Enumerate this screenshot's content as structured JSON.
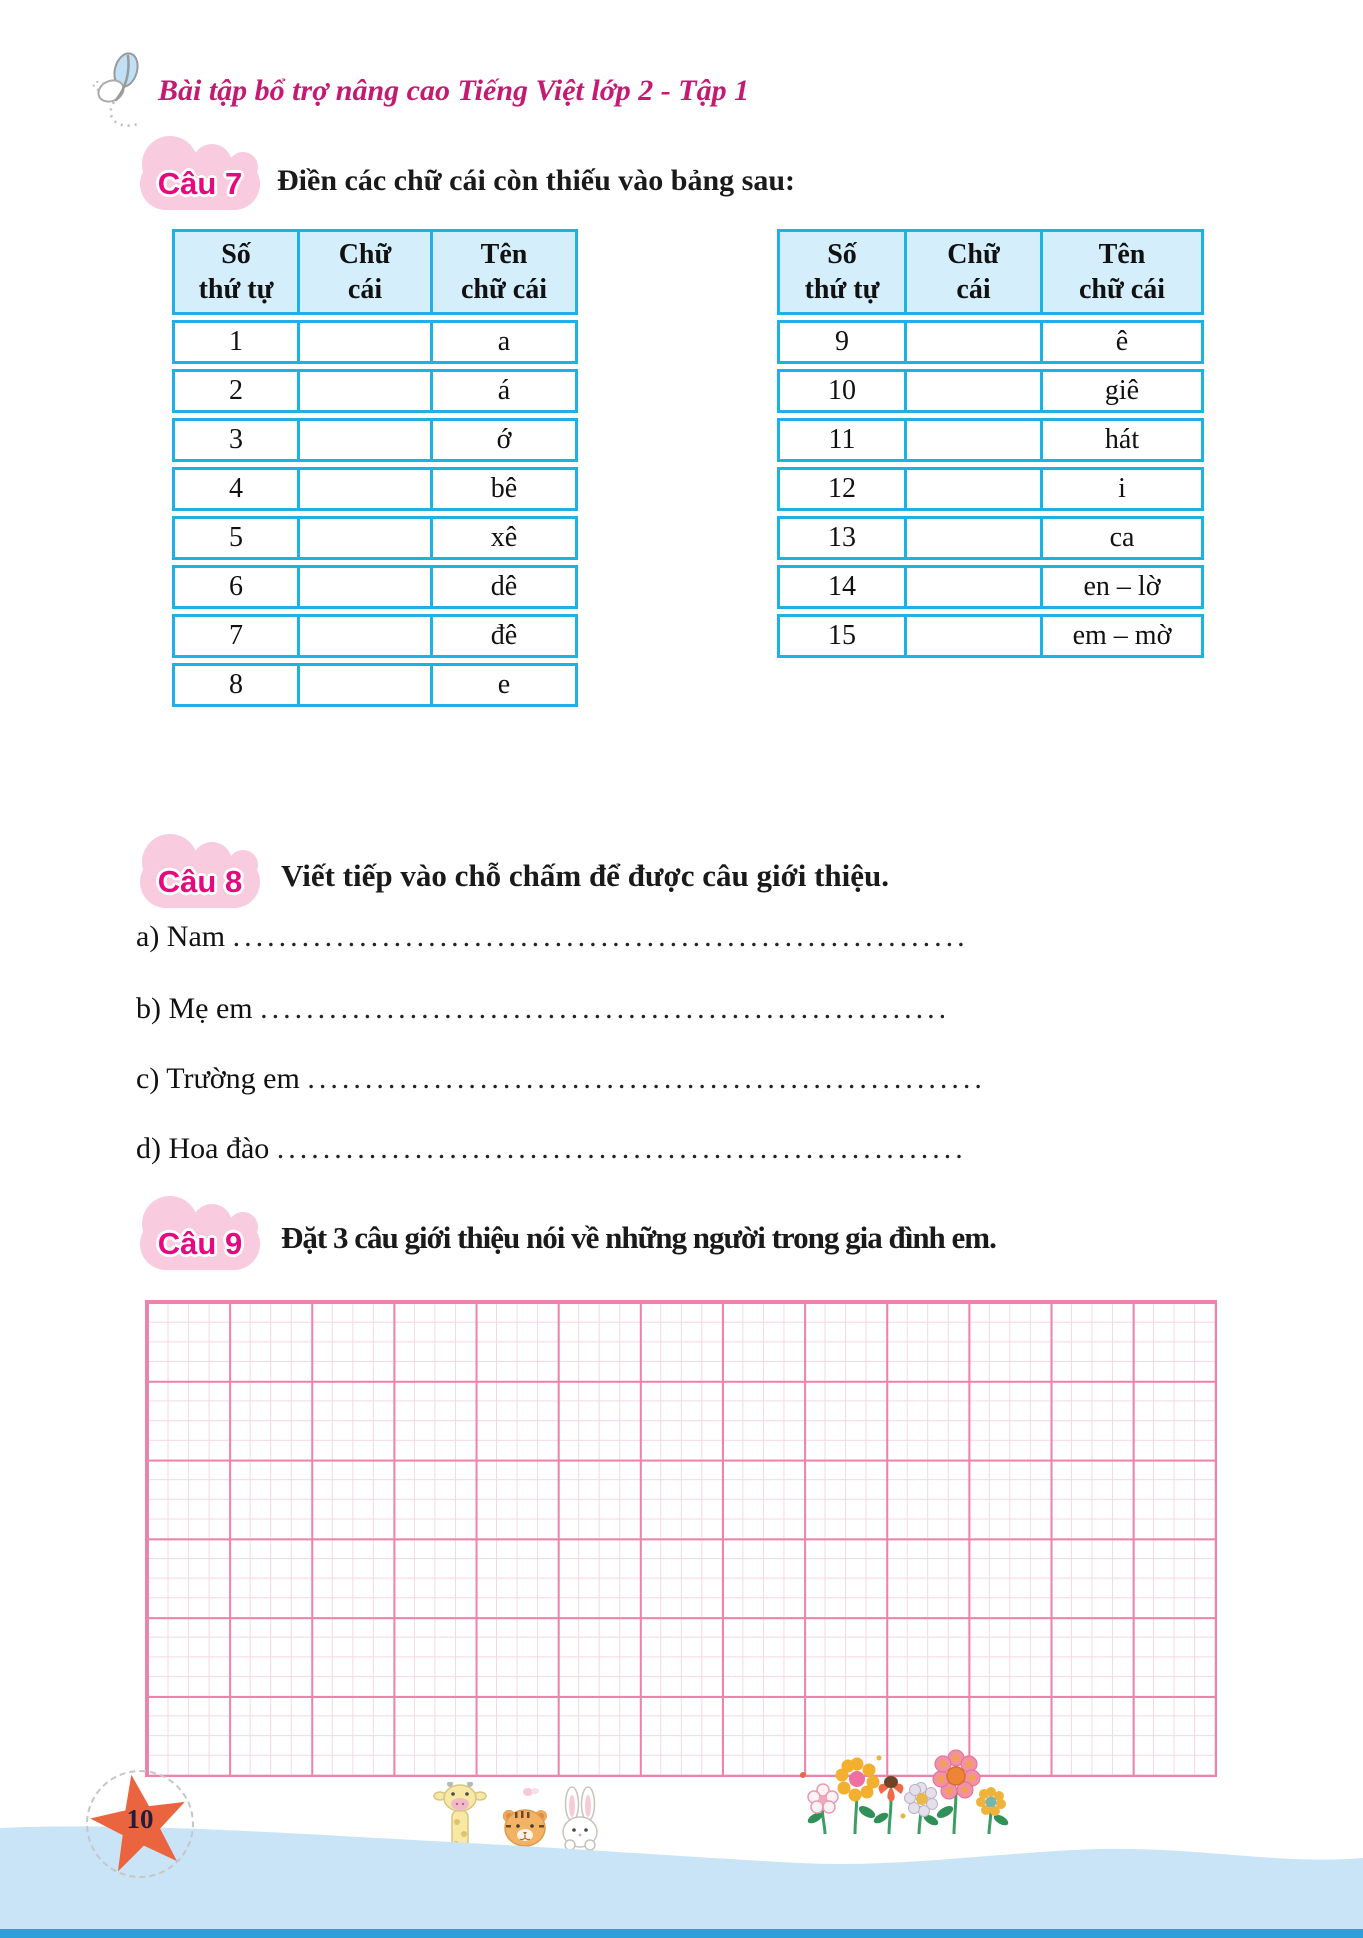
{
  "header": {
    "title": "Bài tập bổ trợ nâng cao Tiếng Việt lớp 2 - Tập 1",
    "butterfly_icon": "butterfly-icon"
  },
  "q7": {
    "badge_label": "Câu 7",
    "instruction": "Điền các chữ cái còn thiếu vào bảng sau:",
    "col_headers": [
      [
        "Số",
        "thứ tự"
      ],
      [
        "Chữ",
        "cái"
      ],
      [
        "Tên",
        "chữ cái"
      ]
    ],
    "left_rows": [
      {
        "num": "1",
        "letter": "",
        "name": "a"
      },
      {
        "num": "2",
        "letter": "",
        "name": "á"
      },
      {
        "num": "3",
        "letter": "",
        "name": "ớ"
      },
      {
        "num": "4",
        "letter": "",
        "name": "bê"
      },
      {
        "num": "5",
        "letter": "",
        "name": "xê"
      },
      {
        "num": "6",
        "letter": "",
        "name": "dê"
      },
      {
        "num": "7",
        "letter": "",
        "name": "đê"
      },
      {
        "num": "8",
        "letter": "",
        "name": "e"
      }
    ],
    "right_rows": [
      {
        "num": "9",
        "letter": "",
        "name": "ê"
      },
      {
        "num": "10",
        "letter": "",
        "name": "giê"
      },
      {
        "num": "11",
        "letter": "",
        "name": "hát"
      },
      {
        "num": "12",
        "letter": "",
        "name": "i"
      },
      {
        "num": "13",
        "letter": "",
        "name": "ca"
      },
      {
        "num": "14",
        "letter": "",
        "name": "en – lờ"
      },
      {
        "num": "15",
        "letter": "",
        "name": "em – mờ"
      }
    ]
  },
  "q8": {
    "badge_label": "Câu 8",
    "instruction": "Viết tiếp vào chỗ chấm để được câu giới thiệu.",
    "items": [
      {
        "label": "a) Nam ",
        "dots": "................................................................................................................."
      },
      {
        "label": "b) Mẹ em ",
        "dots": "................................................................................................................."
      },
      {
        "label": "c) Trường em ",
        "dots": "................................................................................................................."
      },
      {
        "label": "d) Hoa đào ",
        "dots": "................................................................................................................."
      }
    ]
  },
  "q9": {
    "badge_label": "Câu 9",
    "instruction": "Đặt 3 câu giới thiệu nói về những người trong gia đình em."
  },
  "footer": {
    "page_number": "10",
    "decoration_icons": [
      "star-icon",
      "giraffe-icon",
      "tiger-icon",
      "rabbit-icon",
      "flowers-icon",
      "wave-icon"
    ]
  },
  "colors": {
    "table_border": "#1eb1e5",
    "table_header_bg": "#d4eefb",
    "title_pink": "#c51a72",
    "badge_pink": "#f8cbdf",
    "badge_text": "#e5087e",
    "grid_major": "#ee82ac",
    "grid_minor": "#f6d7e4",
    "star_orange": "#e9643f",
    "wave_blue": "#c9e4f6"
  }
}
